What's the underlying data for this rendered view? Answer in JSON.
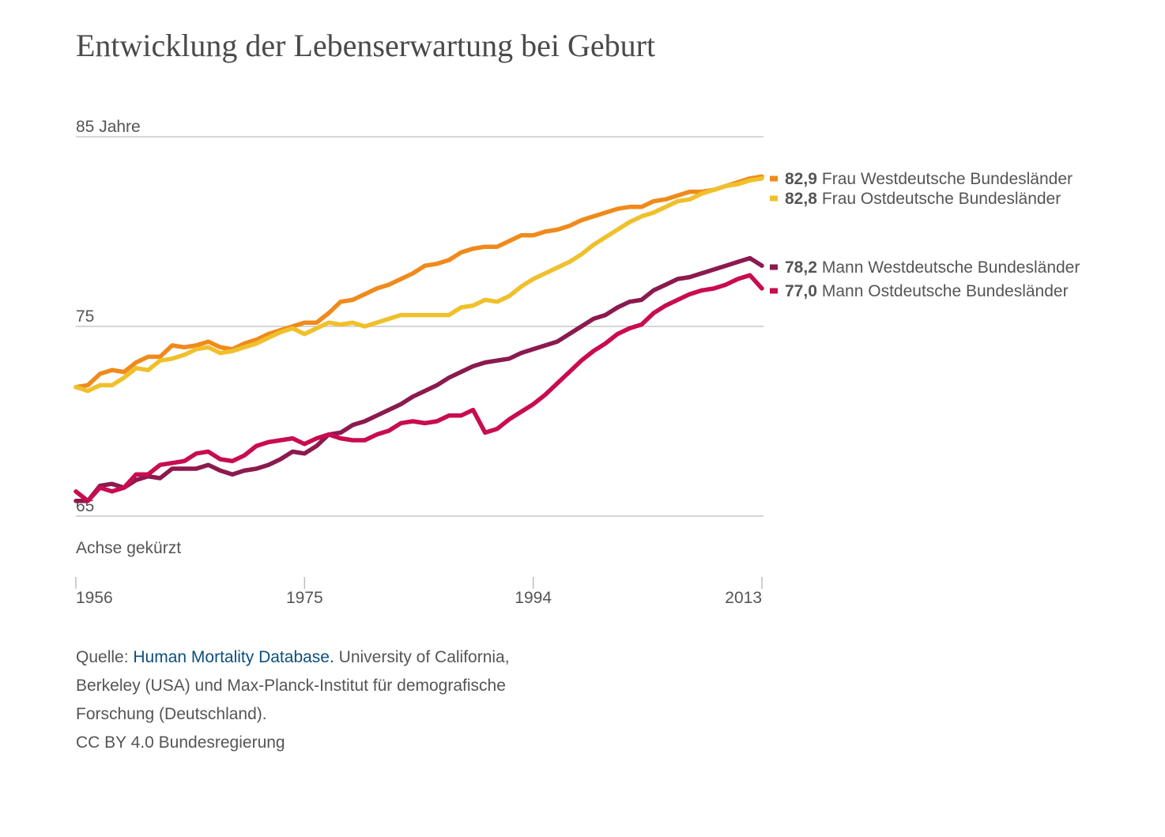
{
  "title": "Entwicklung der Lebenserwartung bei Geburt",
  "axis_note": "Achse gekürzt",
  "source": {
    "prefix": "Quelle: ",
    "link": "Human Mortality Database.",
    "line1_rest": " University of California,",
    "line2": "Berkeley (USA) und Max-Planck-Institut für demografische",
    "line3": "Forschung (Deutschland).",
    "license": "CC BY 4.0 Bundesregierung"
  },
  "chart_data": {
    "type": "line",
    "ylim": [
      65,
      85
    ],
    "xlim": [
      1956,
      2013
    ],
    "y_ticks": [
      {
        "value": 85,
        "label": "85 Jahre"
      },
      {
        "value": 75,
        "label": "75"
      },
      {
        "value": 65,
        "label": "65"
      }
    ],
    "x_ticks": [
      {
        "value": 1956,
        "label": "1956"
      },
      {
        "value": 1975,
        "label": "1975"
      },
      {
        "value": 1994,
        "label": "1994"
      },
      {
        "value": 2013,
        "label": "2013"
      }
    ],
    "grid": true,
    "legend_placement": "right-end-labels",
    "x": [
      1956,
      1957,
      1958,
      1959,
      1960,
      1961,
      1962,
      1963,
      1964,
      1965,
      1966,
      1967,
      1968,
      1969,
      1970,
      1971,
      1972,
      1973,
      1974,
      1975,
      1976,
      1977,
      1978,
      1979,
      1980,
      1981,
      1982,
      1983,
      1984,
      1985,
      1986,
      1987,
      1988,
      1989,
      1990,
      1991,
      1992,
      1993,
      1994,
      1995,
      1996,
      1997,
      1998,
      1999,
      2000,
      2001,
      2002,
      2003,
      2004,
      2005,
      2006,
      2007,
      2008,
      2009,
      2010,
      2011,
      2012,
      2013
    ],
    "series": [
      {
        "name": "Frau Westdeutsche Bundesländer",
        "end_label": "82,9",
        "color": "#ef8a1b",
        "values": [
          71.8,
          71.9,
          72.5,
          72.7,
          72.6,
          73.1,
          73.4,
          73.4,
          74.0,
          73.9,
          74.0,
          74.2,
          73.9,
          73.8,
          74.1,
          74.3,
          74.6,
          74.8,
          75.0,
          75.2,
          75.2,
          75.7,
          76.3,
          76.4,
          76.7,
          77.0,
          77.2,
          77.5,
          77.8,
          78.2,
          78.3,
          78.5,
          78.9,
          79.1,
          79.2,
          79.2,
          79.5,
          79.8,
          79.8,
          80.0,
          80.1,
          80.3,
          80.6,
          80.8,
          81.0,
          81.2,
          81.3,
          81.3,
          81.6,
          81.7,
          81.9,
          82.1,
          82.1,
          82.2,
          82.4,
          82.6,
          82.8,
          82.9
        ]
      },
      {
        "name": "Frau Ostdeutsche Bundesländer",
        "end_label": "82,8",
        "color": "#f0c02c",
        "values": [
          71.8,
          71.6,
          71.9,
          71.9,
          72.3,
          72.8,
          72.7,
          73.2,
          73.3,
          73.5,
          73.8,
          73.9,
          73.6,
          73.7,
          73.9,
          74.1,
          74.4,
          74.7,
          74.9,
          74.6,
          74.9,
          75.2,
          75.1,
          75.2,
          75.0,
          75.2,
          75.4,
          75.6,
          75.6,
          75.6,
          75.6,
          75.6,
          76.0,
          76.1,
          76.4,
          76.3,
          76.6,
          77.1,
          77.5,
          77.8,
          78.1,
          78.4,
          78.8,
          79.3,
          79.7,
          80.1,
          80.5,
          80.8,
          81.0,
          81.3,
          81.6,
          81.7,
          82.0,
          82.2,
          82.4,
          82.5,
          82.7,
          82.8
        ]
      },
      {
        "name": "Mann Westdeutsche Bundesländer",
        "end_label": "78,2",
        "color": "#8b1a4e",
        "values": [
          65.8,
          65.8,
          66.6,
          66.7,
          66.5,
          66.9,
          67.1,
          67.0,
          67.5,
          67.5,
          67.5,
          67.7,
          67.4,
          67.2,
          67.4,
          67.5,
          67.7,
          68.0,
          68.4,
          68.3,
          68.7,
          69.3,
          69.4,
          69.8,
          70.0,
          70.3,
          70.6,
          70.9,
          71.3,
          71.6,
          71.9,
          72.3,
          72.6,
          72.9,
          73.1,
          73.2,
          73.3,
          73.6,
          73.8,
          74.0,
          74.2,
          74.6,
          75.0,
          75.4,
          75.6,
          76.0,
          76.3,
          76.4,
          76.9,
          77.2,
          77.5,
          77.6,
          77.8,
          78.0,
          78.2,
          78.4,
          78.6,
          78.2
        ]
      },
      {
        "name": "Mann Ostdeutsche Bundesländer",
        "end_label": "77,0",
        "color": "#c80c4f",
        "values": [
          66.3,
          65.8,
          66.5,
          66.3,
          66.5,
          67.2,
          67.2,
          67.7,
          67.8,
          67.9,
          68.3,
          68.4,
          68.0,
          67.9,
          68.2,
          68.7,
          68.9,
          69.0,
          69.1,
          68.8,
          69.1,
          69.3,
          69.1,
          69.0,
          69.0,
          69.3,
          69.5,
          69.9,
          70.0,
          69.9,
          70.0,
          70.3,
          70.3,
          70.6,
          69.4,
          69.6,
          70.1,
          70.5,
          70.9,
          71.4,
          72.0,
          72.6,
          73.2,
          73.7,
          74.1,
          74.6,
          74.9,
          75.1,
          75.7,
          76.1,
          76.4,
          76.7,
          76.9,
          77.0,
          77.2,
          77.5,
          77.7,
          77.0
        ]
      }
    ]
  }
}
